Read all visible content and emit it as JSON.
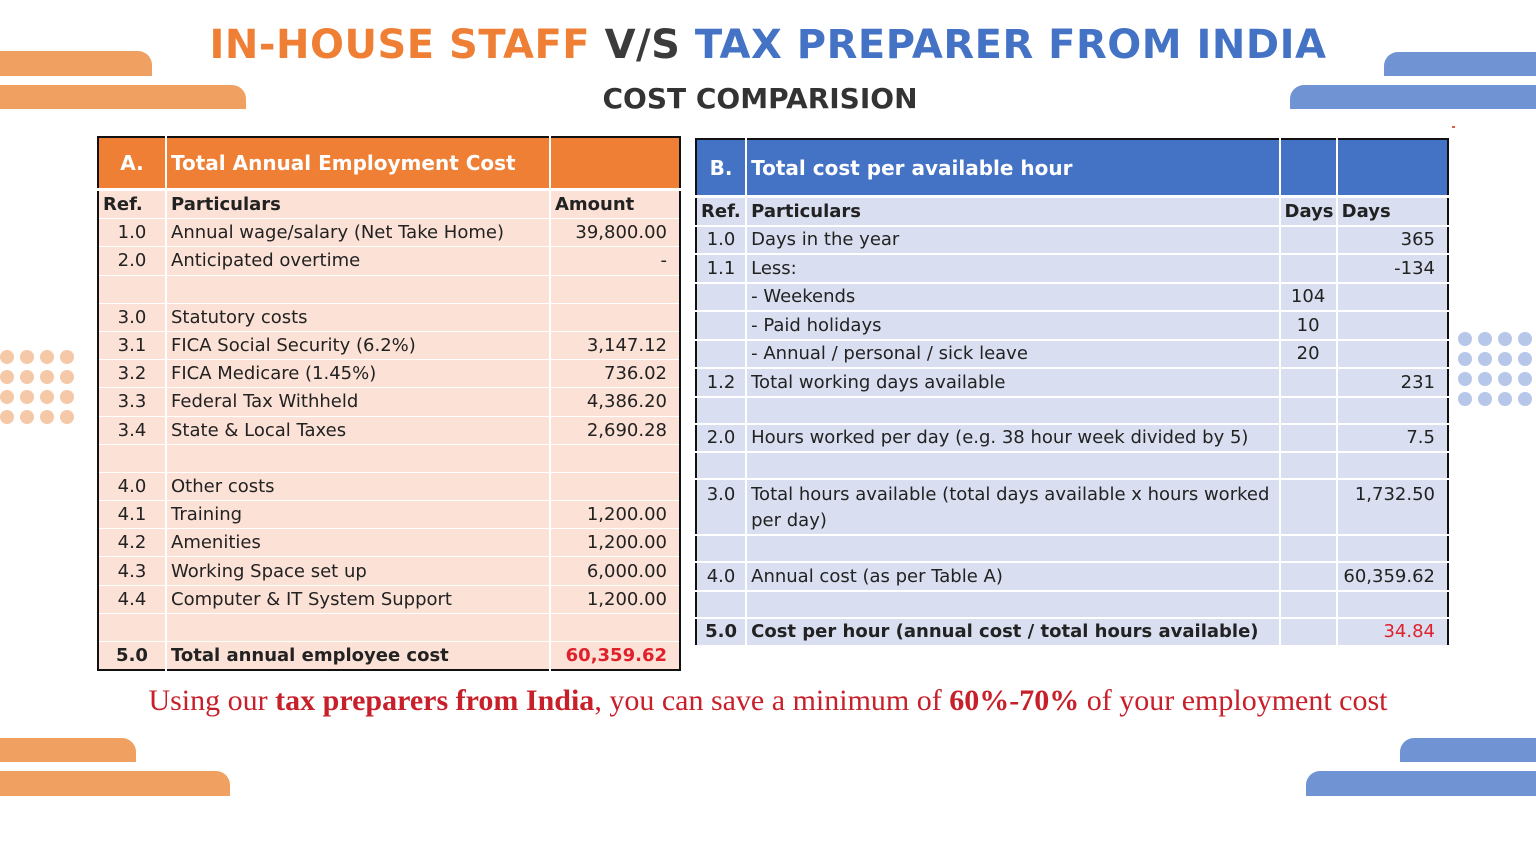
{
  "title": {
    "part1": "IN-HOUSE STAFF",
    "part2": "V/S",
    "part3": "TAX PREPARER FROM INDIA"
  },
  "subtitle": "COST COMPARISION",
  "colors": {
    "orange": "#ee7f35",
    "blue": "#4472c4",
    "red": "#e0202a"
  },
  "table_a": {
    "ref_label": "A.",
    "heading": "Total Annual Employment Cost",
    "col_ref": "Ref.",
    "col_particulars": "Particulars",
    "col_amount": "Amount",
    "rows": [
      {
        "ref": "1.0",
        "particular": "Annual wage/salary (Net Take Home)",
        "amount": "39,800.00"
      },
      {
        "ref": "2.0",
        "particular": "Anticipated overtime",
        "amount": "-"
      },
      {
        "ref": "",
        "particular": "",
        "amount": ""
      },
      {
        "ref": "3.0",
        "particular": "Statutory costs",
        "amount": ""
      },
      {
        "ref": "3.1",
        "particular": "FICA Social Security (6.2%)",
        "amount": "3,147.12"
      },
      {
        "ref": "3.2",
        "particular": "FICA Medicare (1.45%)",
        "amount": "736.02"
      },
      {
        "ref": "3.3",
        "particular": "Federal Tax Withheld",
        "amount": "4,386.20"
      },
      {
        "ref": "3.4",
        "particular": "State & Local Taxes",
        "amount": "2,690.28"
      },
      {
        "ref": "",
        "particular": "",
        "amount": ""
      },
      {
        "ref": "4.0",
        "particular": "Other costs",
        "amount": ""
      },
      {
        "ref": "4.1",
        "particular": "Training",
        "amount": "1,200.00"
      },
      {
        "ref": "4.2",
        "particular": "Amenities",
        "amount": "1,200.00"
      },
      {
        "ref": "4.3",
        "particular": "Working Space set up",
        "amount": "6,000.00"
      },
      {
        "ref": "4.4",
        "particular": "Computer & IT System Support",
        "amount": "1,200.00"
      },
      {
        "ref": "",
        "particular": "",
        "amount": ""
      }
    ],
    "total": {
      "ref": "5.0",
      "particular": "Total annual employee cost",
      "amount": "60,359.62"
    }
  },
  "table_b": {
    "ref_label": "B.",
    "heading": "Total cost per available hour",
    "col_ref": "Ref.",
    "col_particulars": "Particulars",
    "col_days1": "Days",
    "col_days2": "Days",
    "rows": [
      {
        "ref": "1.0",
        "particular": "Days in the year",
        "days1": "",
        "days2": "365"
      },
      {
        "ref": "1.1",
        "particular": "Less:",
        "days1": "",
        "days2": "-134"
      },
      {
        "ref": "",
        "particular": "- Weekends",
        "days1": "104",
        "days2": ""
      },
      {
        "ref": "",
        "particular": "- Paid holidays",
        "days1": "10",
        "days2": ""
      },
      {
        "ref": "",
        "particular": "- Annual / personal / sick leave",
        "days1": "20",
        "days2": ""
      },
      {
        "ref": "1.2",
        "particular": "Total working days available",
        "days1": "",
        "days2": "231"
      },
      {
        "ref": "",
        "particular": "",
        "days1": "",
        "days2": ""
      },
      {
        "ref": "2.0",
        "particular": "Hours worked per day (e.g. 38 hour week divided by 5)",
        "days1": "",
        "days2": "7.5"
      },
      {
        "ref": "",
        "particular": "",
        "days1": "",
        "days2": ""
      },
      {
        "ref": "3.0",
        "particular": "Total hours available (total days available x hours worked per day)",
        "days1": "",
        "days2": "1,732.50"
      },
      {
        "ref": "",
        "particular": "",
        "days1": "",
        "days2": ""
      },
      {
        "ref": "4.0",
        "particular": "Annual cost (as per Table A)",
        "days1": "",
        "days2": "60,359.62"
      },
      {
        "ref": "",
        "particular": "",
        "days1": "",
        "days2": ""
      }
    ],
    "total": {
      "ref": "5.0",
      "particular": "Cost per hour (annual cost / total hours available)",
      "days1": "",
      "days2": "34.84"
    }
  },
  "footer": {
    "part1": "Using our ",
    "part2": "tax preparers from India",
    "part3": ", you can save a minimum of ",
    "part4": "60%-70%",
    "part5": " of your employment cost"
  }
}
